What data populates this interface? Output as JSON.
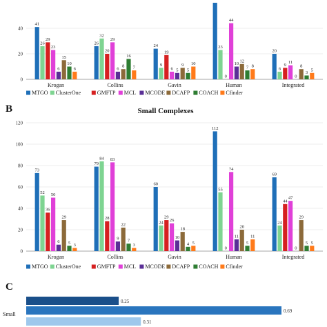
{
  "colors": {
    "MTGO": "#1f6fb8",
    "ClusterOne": "#7ed491",
    "GMFTP": "#d62020",
    "MCL": "#e040d8",
    "MCODE": "#5a2f96",
    "DCAFP": "#8c6a3a",
    "COACH": "#2e7d32",
    "Cfinder": "#ff7a1a"
  },
  "chart_data": [
    {
      "type": "bar",
      "panel": "",
      "title": "",
      "categories": [
        "Krogan",
        "Collins",
        "Gavin",
        "Human",
        "Integrated"
      ],
      "ylim": [
        0,
        60
      ],
      "yticks": [
        0,
        20,
        40
      ],
      "series": [
        {
          "name": "MTGO",
          "values": [
            41,
            26,
            24,
            60,
            20
          ]
        },
        {
          "name": "ClusterOne",
          "values": [
            26,
            32,
            9,
            23,
            6
          ]
        },
        {
          "name": "GMFTP",
          "values": [
            29,
            20,
            19,
            0,
            9
          ]
        },
        {
          "name": "MCL",
          "values": [
            23,
            29,
            6,
            44,
            11
          ]
        },
        {
          "name": "MCODE",
          "values": [
            6,
            6,
            5,
            10,
            0
          ]
        },
        {
          "name": "DCAFP",
          "values": [
            15,
            8,
            9,
            12,
            8
          ]
        },
        {
          "name": "COACH",
          "values": [
            10,
            16,
            5,
            7,
            3
          ]
        },
        {
          "name": "Cfinder",
          "values": [
            6,
            7,
            10,
            8,
            5
          ]
        }
      ],
      "data_labels": [
        [
          "41",
          "26",
          "29",
          "23",
          "6",
          "15",
          "10",
          "6"
        ],
        [
          "26",
          "32",
          "20",
          "29",
          "6",
          "8",
          "16",
          "7"
        ],
        [
          "24",
          "9",
          "19",
          "6",
          "5",
          "9",
          "5",
          "10"
        ],
        [
          "",
          "23",
          "0",
          "44",
          "10",
          "12",
          "7",
          "8"
        ],
        [
          "20",
          "6",
          "9",
          "11",
          "0",
          "8",
          "3",
          "5"
        ]
      ]
    },
    {
      "type": "bar",
      "panel": "B",
      "title": "Small Complexes",
      "categories": [
        "Krogan",
        "Collins",
        "Gavin",
        "Human",
        "Integrated"
      ],
      "ylim": [
        0,
        120
      ],
      "yticks": [
        0,
        20,
        40,
        60,
        80,
        100,
        120
      ],
      "series": [
        {
          "name": "MTGO",
          "values": [
            73,
            79,
            60,
            112,
            69
          ]
        },
        {
          "name": "ClusterOne",
          "values": [
            52,
            84,
            24,
            55,
            24
          ]
        },
        {
          "name": "GMFTP",
          "values": [
            36,
            28,
            29,
            0,
            44
          ]
        },
        {
          "name": "MCL",
          "values": [
            50,
            83,
            26,
            74,
            47
          ]
        },
        {
          "name": "MCODE",
          "values": [
            6,
            9,
            10,
            11,
            0
          ]
        },
        {
          "name": "DCAFP",
          "values": [
            29,
            22,
            18,
            20,
            29
          ]
        },
        {
          "name": "COACH",
          "values": [
            5,
            7,
            4,
            5,
            5
          ]
        },
        {
          "name": "Cfinder",
          "values": [
            3,
            3,
            5,
            11,
            5
          ]
        }
      ],
      "data_labels": [
        [
          "73",
          "52",
          "36",
          "50",
          "6",
          "29",
          "5",
          "3"
        ],
        [
          "79",
          "84",
          "28",
          "83",
          "9",
          "22",
          "7",
          "3"
        ],
        [
          "60",
          "24",
          "29",
          "26",
          "10",
          "18",
          "4",
          "5"
        ],
        [
          "112",
          "55",
          "0",
          "74",
          "11",
          "20",
          "5",
          "11"
        ],
        [
          "69",
          "24",
          "44",
          "47",
          "0",
          "29",
          "5",
          "5"
        ]
      ]
    },
    {
      "type": "bar",
      "orientation": "horizontal",
      "panel": "C",
      "title": "",
      "categories": [
        "Small"
      ],
      "xlim": [
        0,
        0.8
      ],
      "series": [
        {
          "name": "",
          "values": [
            0.25
          ],
          "color": "#1a4f8a"
        },
        {
          "name": "",
          "values": [
            0.69
          ],
          "color": "#2a75be"
        },
        {
          "name": "",
          "values": [
            0.31
          ],
          "color": "#9ec8ec"
        }
      ]
    }
  ]
}
